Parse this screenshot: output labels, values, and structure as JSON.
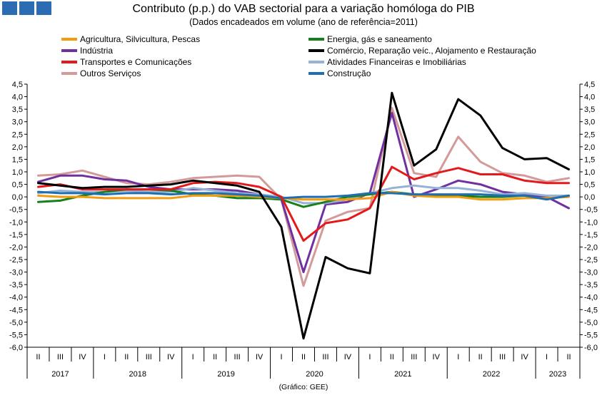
{
  "header": {
    "title": "Contributo (p.p.) do VAB sectorial para a variação homóloga do PIB",
    "subtitle": "(Dados encadeados em volume (ano de referência=2011)",
    "source": "(Gráfico: GEE)"
  },
  "chart_data": {
    "type": "line",
    "title": "Contributo (p.p.) do VAB sectorial para a variação homóloga do PIB",
    "subtitle": "(Dados encadeados em volume (ano de referência=2011)",
    "ylim": [
      -6.0,
      4.5
    ],
    "yticks": [
      "4,5",
      "4,0",
      "3,5",
      "3,0",
      "2,5",
      "2,0",
      "1,5",
      "1,0",
      "0,5",
      "0,0",
      "-0,5",
      "-1,0",
      "-1,5",
      "-2,0",
      "-2,5",
      "-3,0",
      "-3,5",
      "-4,0",
      "-4,5",
      "-5,0",
      "-5,5",
      "-6,0"
    ],
    "yticks_right": [
      "4,5",
      "4,0",
      "3,5",
      "3,0",
      "2,5",
      "2,0",
      "1,5",
      "1,0",
      "0,5",
      "0,0",
      "-0,5",
      "-1,0",
      "-1,5",
      "-2,0",
      "-2,5",
      "-3,0",
      "-3,5",
      "-4,0",
      "-4,5",
      "-5,0",
      "-5,5",
      "-6,0"
    ],
    "quarters": [
      "II",
      "III",
      "IV",
      "I",
      "II",
      "III",
      "IV",
      "I",
      "II",
      "III",
      "IV",
      "I",
      "II",
      "III",
      "IV",
      "I",
      "II",
      "III",
      "IV",
      "I",
      "II",
      "III",
      "IV",
      "I",
      "II"
    ],
    "years": [
      {
        "label": "2017",
        "count": 3
      },
      {
        "label": "2018",
        "count": 4
      },
      {
        "label": "2019",
        "count": 4
      },
      {
        "label": "2020",
        "count": 4
      },
      {
        "label": "2021",
        "count": 4
      },
      {
        "label": "2022",
        "count": 4
      },
      {
        "label": "2023",
        "count": 2
      }
    ],
    "grid": false,
    "legend_position": "top",
    "series": [
      {
        "name": "Agricultura, Silvicultura, Pescas",
        "color": "#f39c12",
        "values": [
          0.05,
          0.0,
          0.0,
          -0.05,
          -0.05,
          -0.05,
          -0.05,
          0.05,
          0.05,
          0.05,
          0.0,
          -0.05,
          -0.1,
          -0.1,
          -0.1,
          -0.05,
          0.2,
          0.05,
          0.0,
          0.0,
          -0.1,
          -0.1,
          -0.05,
          -0.05,
          0.0
        ]
      },
      {
        "name": "Energia, gás e saneamento",
        "color": "#17801a",
        "values": [
          -0.2,
          -0.15,
          0.05,
          0.2,
          0.3,
          0.3,
          0.25,
          0.1,
          0.05,
          -0.05,
          -0.05,
          -0.1,
          -0.4,
          -0.2,
          0.0,
          0.1,
          0.2,
          0.1,
          0.05,
          0.05,
          0.0,
          0.0,
          0.05,
          -0.1,
          0.05
        ]
      },
      {
        "name": "Indústria",
        "color": "#7030a0",
        "values": [
          0.6,
          0.85,
          0.85,
          0.7,
          0.65,
          0.4,
          0.3,
          0.3,
          0.3,
          0.25,
          0.1,
          -0.1,
          -3.0,
          -0.3,
          -0.2,
          0.15,
          3.35,
          0.0,
          0.3,
          0.65,
          0.5,
          0.2,
          0.1,
          0.0,
          -0.45
        ]
      },
      {
        "name": "Comércio, Reparação veíc., Alojamento e Restauração",
        "color": "#000000",
        "values": [
          0.55,
          0.45,
          0.35,
          0.4,
          0.4,
          0.45,
          0.5,
          0.65,
          0.55,
          0.45,
          0.2,
          -1.2,
          -5.65,
          -2.4,
          -2.85,
          -3.05,
          4.15,
          1.25,
          1.9,
          3.9,
          3.25,
          1.95,
          1.5,
          1.55,
          1.1
        ]
      },
      {
        "name": "Transportes e Comunicações",
        "color": "#e31a1c",
        "values": [
          0.4,
          0.5,
          0.3,
          0.3,
          0.3,
          0.3,
          0.3,
          0.55,
          0.6,
          0.55,
          0.4,
          0.0,
          -1.75,
          -1.05,
          -0.9,
          -0.45,
          1.2,
          0.7,
          0.95,
          1.15,
          0.9,
          0.9,
          0.65,
          0.55,
          0.55
        ]
      },
      {
        "name": "Atividades Financeiras e Imobiliárias",
        "color": "#95b3d7",
        "values": [
          0.15,
          0.25,
          0.2,
          0.2,
          0.25,
          0.2,
          0.2,
          0.35,
          0.25,
          0.15,
          0.1,
          0.0,
          -0.25,
          -0.25,
          -0.1,
          0.15,
          0.35,
          0.45,
          0.35,
          0.35,
          0.25,
          0.1,
          0.15,
          0.05,
          0.05
        ]
      },
      {
        "name": "Outros Serviços",
        "color": "#d49a9a",
        "values": [
          0.85,
          0.9,
          1.05,
          0.8,
          0.55,
          0.5,
          0.6,
          0.75,
          0.8,
          0.85,
          0.8,
          -0.1,
          -3.55,
          -0.95,
          -0.6,
          -0.45,
          3.55,
          0.95,
          0.8,
          2.4,
          1.4,
          0.95,
          0.85,
          0.6,
          0.75
        ]
      },
      {
        "name": "Construção",
        "color": "#1f6fb0",
        "values": [
          0.2,
          0.15,
          0.15,
          0.1,
          0.15,
          0.15,
          0.1,
          0.15,
          0.15,
          0.1,
          0.05,
          -0.05,
          0.0,
          0.0,
          0.05,
          0.15,
          0.15,
          0.1,
          0.1,
          0.1,
          0.1,
          0.05,
          0.05,
          -0.1,
          0.05
        ]
      }
    ]
  }
}
